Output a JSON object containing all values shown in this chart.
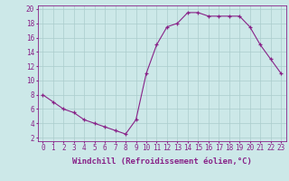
{
  "x": [
    0,
    1,
    2,
    3,
    4,
    5,
    6,
    7,
    8,
    9,
    10,
    11,
    12,
    13,
    14,
    15,
    16,
    17,
    18,
    19,
    20,
    21,
    22,
    23
  ],
  "y": [
    8.0,
    7.0,
    6.0,
    5.5,
    4.5,
    4.0,
    3.5,
    3.0,
    2.5,
    4.5,
    11.0,
    15.0,
    17.5,
    18.0,
    19.5,
    19.5,
    19.0,
    19.0,
    19.0,
    19.0,
    17.5,
    15.0,
    13.0,
    11.0
  ],
  "line_color": "#882288",
  "marker": "+",
  "background_color": "#cce8e8",
  "grid_color": "#aacccc",
  "xlabel": "Windchill (Refroidissement éolien,°C)",
  "xlabel_fontsize": 6.5,
  "ylabel_ticks": [
    2,
    4,
    6,
    8,
    10,
    12,
    14,
    16,
    18,
    20
  ],
  "xlim": [
    -0.5,
    23.5
  ],
  "ylim": [
    1.5,
    20.5
  ],
  "tick_fontsize": 5.5,
  "axis_label_color": "#882288",
  "spine_color": "#882288"
}
